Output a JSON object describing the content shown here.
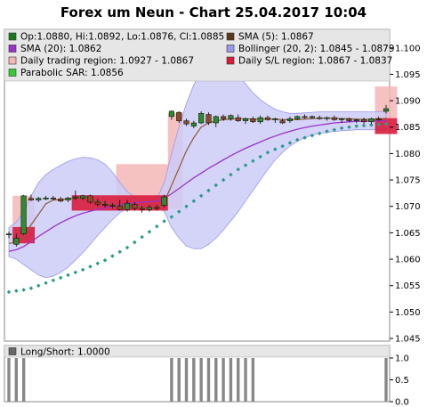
{
  "chart_data": [
    {
      "type": "candlestick",
      "title": "Forex um Neun - Chart 25.04.2017 10:04",
      "y_ticks": [
        "1.100",
        "1.095",
        "1.090",
        "1.085",
        "1.080",
        "1.075",
        "1.070",
        "1.065",
        "1.060",
        "1.055",
        "1.050",
        "1.045"
      ],
      "ylim": [
        1.0445,
        1.1035
      ],
      "legend": [
        {
          "label": "Op:1.0880, Hi:1.0892, Lo:1.0876, Cl:1.0885",
          "color": "#1a7a1a"
        },
        {
          "label": "SMA (5): 1.0867",
          "color": "#5a3a1a"
        },
        {
          "label": "SMA (20): 1.0862",
          "color": "#9933cc"
        },
        {
          "label": "Bollinger (20, 2): 1.0845 - 1.0879",
          "color": "#9999ee"
        },
        {
          "label": "Daily trading region: 1.0927 - 1.0867",
          "color": "#f4b6b6"
        },
        {
          "label": "Daily S/L region: 1.0867 - 1.0837",
          "color": "#d81c3c"
        },
        {
          "label": "Parabolic SAR: 1.0856",
          "color": "#33cc33"
        }
      ],
      "colors": {
        "bull": "#2e8b2e",
        "bear": "#8b4a2a",
        "sma5": "#8b5a3a",
        "sma20": "#9933cc",
        "bollinger_fill": "#ccccf7",
        "bollinger_edge": "#9999ee",
        "trading_region": "#f4b6b6",
        "sl_region": "#d81c3c",
        "sar": "#2a9a8a",
        "frame_bg": "#e6e6e6"
      },
      "candles": [
        {
          "o": 1.0646,
          "h": 1.0652,
          "l": 1.064,
          "c": 1.0648
        },
        {
          "o": 1.0628,
          "h": 1.0648,
          "l": 1.0624,
          "c": 1.064
        },
        {
          "o": 1.0648,
          "h": 1.0722,
          "l": 1.0646,
          "c": 1.072
        },
        {
          "o": 1.0715,
          "h": 1.0722,
          "l": 1.071,
          "c": 1.0712
        },
        {
          "o": 1.0712,
          "h": 1.0718,
          "l": 1.0708,
          "c": 1.0715
        },
        {
          "o": 1.0715,
          "h": 1.072,
          "l": 1.0712,
          "c": 1.0716
        },
        {
          "o": 1.0716,
          "h": 1.072,
          "l": 1.0712,
          "c": 1.0714
        },
        {
          "o": 1.0714,
          "h": 1.0718,
          "l": 1.0708,
          "c": 1.071
        },
        {
          "o": 1.0712,
          "h": 1.0718,
          "l": 1.0708,
          "c": 1.0716
        },
        {
          "o": 1.0716,
          "h": 1.073,
          "l": 1.0712,
          "c": 1.0718
        },
        {
          "o": 1.0716,
          "h": 1.0722,
          "l": 1.0712,
          "c": 1.072
        },
        {
          "o": 1.072,
          "h": 1.0722,
          "l": 1.0705,
          "c": 1.0708
        },
        {
          "o": 1.0708,
          "h": 1.0714,
          "l": 1.07,
          "c": 1.0704
        },
        {
          "o": 1.0704,
          "h": 1.071,
          "l": 1.0698,
          "c": 1.0702
        },
        {
          "o": 1.0702,
          "h": 1.0706,
          "l": 1.0696,
          "c": 1.07
        },
        {
          "o": 1.07,
          "h": 1.0712,
          "l": 1.0692,
          "c": 1.0694
        },
        {
          "o": 1.0694,
          "h": 1.0712,
          "l": 1.069,
          "c": 1.0706
        },
        {
          "o": 1.0704,
          "h": 1.0708,
          "l": 1.0692,
          "c": 1.0696
        },
        {
          "o": 1.0696,
          "h": 1.07,
          "l": 1.0688,
          "c": 1.0694
        },
        {
          "o": 1.0694,
          "h": 1.0702,
          "l": 1.069,
          "c": 1.0698
        },
        {
          "o": 1.0698,
          "h": 1.0702,
          "l": 1.0692,
          "c": 1.0696
        },
        {
          "o": 1.0702,
          "h": 1.0722,
          "l": 1.0698,
          "c": 1.0718
        },
        {
          "o": 1.087,
          "h": 1.0882,
          "l": 1.0864,
          "c": 1.088
        },
        {
          "o": 1.0878,
          "h": 1.088,
          "l": 1.0858,
          "c": 1.0862
        },
        {
          "o": 1.0862,
          "h": 1.0866,
          "l": 1.0852,
          "c": 1.0856
        },
        {
          "o": 1.0852,
          "h": 1.0862,
          "l": 1.0848,
          "c": 1.0858
        },
        {
          "o": 1.0858,
          "h": 1.088,
          "l": 1.0856,
          "c": 1.0876
        },
        {
          "o": 1.0874,
          "h": 1.0878,
          "l": 1.0854,
          "c": 1.0858
        },
        {
          "o": 1.0858,
          "h": 1.0872,
          "l": 1.085,
          "c": 1.087
        },
        {
          "o": 1.087,
          "h": 1.0874,
          "l": 1.0862,
          "c": 1.0866
        },
        {
          "o": 1.0866,
          "h": 1.0874,
          "l": 1.0862,
          "c": 1.0872
        },
        {
          "o": 1.0868,
          "h": 1.0874,
          "l": 1.086,
          "c": 1.0862
        },
        {
          "o": 1.0862,
          "h": 1.0868,
          "l": 1.0856,
          "c": 1.0866
        },
        {
          "o": 1.0866,
          "h": 1.087,
          "l": 1.0858,
          "c": 1.086
        },
        {
          "o": 1.086,
          "h": 1.0872,
          "l": 1.0856,
          "c": 1.0868
        },
        {
          "o": 1.0868,
          "h": 1.0872,
          "l": 1.0862,
          "c": 1.0864
        },
        {
          "o": 1.0864,
          "h": 1.0868,
          "l": 1.0858,
          "c": 1.0866
        },
        {
          "o": 1.0862,
          "h": 1.0866,
          "l": 1.0856,
          "c": 1.0858
        },
        {
          "o": 1.0862,
          "h": 1.087,
          "l": 1.0858,
          "c": 1.0866
        },
        {
          "o": 1.0866,
          "h": 1.0872,
          "l": 1.0864,
          "c": 1.087
        },
        {
          "o": 1.087,
          "h": 1.0874,
          "l": 1.0866,
          "c": 1.0868
        },
        {
          "o": 1.0868,
          "h": 1.0872,
          "l": 1.0866,
          "c": 1.087
        },
        {
          "o": 1.0868,
          "h": 1.0872,
          "l": 1.0864,
          "c": 1.0866
        },
        {
          "o": 1.0866,
          "h": 1.087,
          "l": 1.0862,
          "c": 1.0868
        },
        {
          "o": 1.0868,
          "h": 1.0872,
          "l": 1.0862,
          "c": 1.0864
        },
        {
          "o": 1.0864,
          "h": 1.0868,
          "l": 1.0858,
          "c": 1.0866
        },
        {
          "o": 1.0866,
          "h": 1.0868,
          "l": 1.086,
          "c": 1.0862
        },
        {
          "o": 1.0862,
          "h": 1.0866,
          "l": 1.0858,
          "c": 1.0864
        },
        {
          "o": 1.0864,
          "h": 1.0868,
          "l": 1.0856,
          "c": 1.086
        },
        {
          "o": 1.086,
          "h": 1.0868,
          "l": 1.0856,
          "c": 1.0866
        },
        {
          "o": 1.0866,
          "h": 1.087,
          "l": 1.0862,
          "c": 1.0864
        },
        {
          "o": 1.088,
          "h": 1.0892,
          "l": 1.0876,
          "c": 1.0885
        }
      ],
      "sma5": [
        1.063,
        1.0632,
        1.0642,
        1.0665,
        1.0685,
        1.0705,
        1.0712,
        1.0713,
        1.0714,
        1.0715,
        1.0715,
        1.0713,
        1.071,
        1.0706,
        1.0703,
        1.0701,
        1.07,
        1.07,
        1.0698,
        1.0697,
        1.0698,
        1.0708,
        1.074,
        1.0772,
        1.0805,
        1.083,
        1.085,
        1.0858,
        1.0862,
        1.0864,
        1.0865,
        1.0866,
        1.0866,
        1.0865,
        1.0865,
        1.0865,
        1.0865,
        1.0864,
        1.0864,
        1.0864,
        1.0865,
        1.0866,
        1.0867,
        1.0867,
        1.0867,
        1.0866,
        1.0866,
        1.0865,
        1.0865,
        1.0864,
        1.0864,
        1.0867
      ],
      "sma20": [
        1.0615,
        1.0618,
        1.0624,
        1.0633,
        1.0643,
        1.0652,
        1.0661,
        1.0669,
        1.0676,
        1.0682,
        1.0687,
        1.0691,
        1.0694,
        1.0697,
        1.07,
        1.0703,
        1.0705,
        1.0707,
        1.0708,
        1.0709,
        1.071,
        1.0715,
        1.0724,
        1.0734,
        1.0744,
        1.0754,
        1.0763,
        1.0772,
        1.078,
        1.0788,
        1.0796,
        1.0803,
        1.081,
        1.0816,
        1.0822,
        1.0828,
        1.0833,
        1.0838,
        1.0842,
        1.0846,
        1.0849,
        1.0852,
        1.0854,
        1.0856,
        1.0858,
        1.0859,
        1.086,
        1.0861,
        1.0861,
        1.0862,
        1.0862,
        1.0862
      ],
      "boll_upper": [
        1.066,
        1.067,
        1.069,
        1.072,
        1.0745,
        1.076,
        1.077,
        1.0778,
        1.0785,
        1.079,
        1.0793,
        1.0792,
        1.0788,
        1.078,
        1.0765,
        1.0745,
        1.0728,
        1.0718,
        1.0715,
        1.0714,
        1.0714,
        1.0745,
        1.08,
        1.085,
        1.0895,
        1.093,
        1.0955,
        1.0968,
        1.0972,
        1.097,
        1.0962,
        1.0948,
        1.0932,
        1.0915,
        1.0902,
        1.0892,
        1.0884,
        1.0879,
        1.0876,
        1.0876,
        1.0877,
        1.0878,
        1.0879,
        1.0879,
        1.0879,
        1.0879,
        1.0879,
        1.0879,
        1.0879,
        1.0879,
        1.0879,
        1.0879
      ],
      "boll_lower": [
        1.0605,
        1.06,
        1.059,
        1.058,
        1.057,
        1.0565,
        1.0568,
        1.0575,
        1.0585,
        1.0598,
        1.0612,
        1.0628,
        1.0645,
        1.066,
        1.0675,
        1.0688,
        1.0695,
        1.0698,
        1.07,
        1.0702,
        1.0704,
        1.069,
        1.066,
        1.064,
        1.0625,
        1.062,
        1.062,
        1.0628,
        1.064,
        1.0655,
        1.0672,
        1.069,
        1.071,
        1.073,
        1.075,
        1.077,
        1.0788,
        1.0802,
        1.0814,
        1.0823,
        1.083,
        1.0835,
        1.0838,
        1.084,
        1.0842,
        1.0843,
        1.0844,
        1.0845,
        1.0845,
        1.0845,
        1.0845,
        1.0845
      ],
      "sar": [
        1.0538,
        1.054,
        1.0542,
        1.0545,
        1.055,
        1.0555,
        1.056,
        1.0565,
        1.057,
        1.0575,
        1.058,
        1.0586,
        1.0592,
        1.0598,
        1.0606,
        1.0614,
        1.0622,
        1.0632,
        1.0642,
        1.0652,
        1.0662,
        1.0672,
        1.068,
        1.069,
        1.07,
        1.071,
        1.072,
        1.073,
        1.074,
        1.075,
        1.076,
        1.077,
        1.0778,
        1.0786,
        1.0794,
        1.0802,
        1.0808,
        1.0814,
        1.082,
        1.0826,
        1.083,
        1.0834,
        1.0838,
        1.0842,
        1.0845,
        1.0848,
        1.085,
        1.0852,
        1.0853,
        1.0854,
        1.0855,
        1.0856
      ],
      "trading_regions": [
        {
          "from": 1,
          "to": 3,
          "low": 1.0641,
          "high": 1.072
        },
        {
          "from": 15,
          "to": 21,
          "low": 1.07,
          "high": 1.078
        },
        {
          "from": 22,
          "to": 23,
          "low": 1.0695,
          "high": 1.0876
        },
        {
          "from": 50,
          "to": 52,
          "low": 1.0867,
          "high": 1.0927
        }
      ],
      "sl_regions": [
        {
          "from": 1,
          "to": 3,
          "low": 1.063,
          "high": 1.0661
        },
        {
          "from": 9,
          "to": 21,
          "low": 1.0692,
          "high": 1.0721
        },
        {
          "from": 50,
          "to": 52,
          "low": 1.0837,
          "high": 1.0867
        }
      ]
    },
    {
      "type": "bar",
      "legend": [
        {
          "label": "Long/Short: 1.0000",
          "color": "#666666"
        }
      ],
      "y_ticks": [
        "1.0",
        "0.5",
        "0.0"
      ],
      "ylim": [
        0,
        1.0
      ],
      "values": [
        1,
        1,
        1,
        0,
        0,
        0,
        0,
        0,
        0,
        0,
        0,
        0,
        0,
        0,
        0,
        0,
        0,
        0,
        0,
        0,
        0,
        0,
        1,
        1,
        1,
        1,
        1,
        1,
        1,
        1,
        1,
        1,
        1,
        1,
        0,
        0,
        0,
        0,
        0,
        0,
        0,
        0,
        0,
        0,
        0,
        0,
        0,
        0,
        0,
        0,
        0,
        1
      ],
      "color": "#888888"
    }
  ]
}
